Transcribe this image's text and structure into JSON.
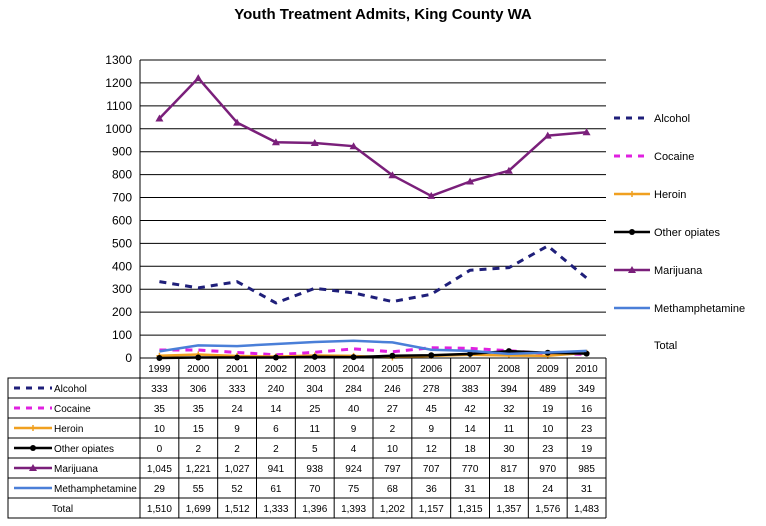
{
  "chart_data": {
    "type": "line",
    "title": "Youth Treatment Admits, King County WA",
    "categories": [
      "1999",
      "2000",
      "2001",
      "2002",
      "2003",
      "2004",
      "2005",
      "2006",
      "2007",
      "2008",
      "2009",
      "2010"
    ],
    "ylim": [
      0,
      1300
    ],
    "yticks": [
      0,
      100,
      200,
      300,
      400,
      500,
      600,
      700,
      800,
      900,
      1000,
      1100,
      1200,
      1300
    ],
    "grid": true,
    "legend_position": "right",
    "series": [
      {
        "name": "Alcohol",
        "color": "#1F1F7A",
        "style": "dashed",
        "marker": "none",
        "values": [
          333,
          306,
          333,
          240,
          304,
          284,
          246,
          278,
          383,
          394,
          489,
          349
        ],
        "labels": [
          "333",
          "306",
          "333",
          "240",
          "304",
          "284",
          "246",
          "278",
          "383",
          "394",
          "489",
          "349"
        ]
      },
      {
        "name": "Cocaine",
        "color": "#E020E0",
        "style": "dashed",
        "marker": "none",
        "values": [
          35,
          35,
          24,
          14,
          25,
          40,
          27,
          45,
          42,
          32,
          19,
          16
        ],
        "labels": [
          "35",
          "35",
          "24",
          "14",
          "25",
          "40",
          "27",
          "45",
          "42",
          "32",
          "19",
          "16"
        ]
      },
      {
        "name": "Heroin",
        "color": "#F0A020",
        "style": "solid",
        "marker": "plus",
        "values": [
          10,
          15,
          9,
          6,
          11,
          9,
          2,
          9,
          14,
          11,
          10,
          23
        ],
        "labels": [
          "10",
          "15",
          "9",
          "6",
          "11",
          "9",
          "2",
          "9",
          "14",
          "11",
          "10",
          "23"
        ]
      },
      {
        "name": "Other opiates",
        "color": "#000000",
        "style": "solid",
        "marker": "circle",
        "values": [
          0,
          2,
          2,
          2,
          5,
          4,
          10,
          12,
          18,
          30,
          23,
          19
        ],
        "labels": [
          "0",
          "2",
          "2",
          "2",
          "5",
          "4",
          "10",
          "12",
          "18",
          "30",
          "23",
          "19"
        ]
      },
      {
        "name": "Marijuana",
        "color": "#7A1F7A",
        "style": "solid",
        "marker": "triangle",
        "values": [
          1045,
          1221,
          1027,
          941,
          938,
          924,
          797,
          707,
          770,
          817,
          970,
          985
        ],
        "labels": [
          "1,045",
          "1,221",
          "1,027",
          "941",
          "938",
          "924",
          "797",
          "707",
          "770",
          "817",
          "970",
          "985"
        ]
      },
      {
        "name": "Methamphetamine",
        "color": "#4A7FD8",
        "style": "solid",
        "marker": "none",
        "values": [
          29,
          55,
          52,
          61,
          70,
          75,
          68,
          36,
          31,
          18,
          24,
          31
        ],
        "labels": [
          "29",
          "55",
          "52",
          "61",
          "70",
          "75",
          "68",
          "36",
          "31",
          "18",
          "24",
          "31"
        ]
      }
    ],
    "total": {
      "name": "Total",
      "values": [
        1510,
        1699,
        1512,
        1333,
        1396,
        1393,
        1202,
        1157,
        1315,
        1357,
        1576,
        1483
      ],
      "labels": [
        "1,510",
        "1,699",
        "1,512",
        "1,333",
        "1,396",
        "1,393",
        "1,202",
        "1,157",
        "1,315",
        "1,357",
        "1,576",
        "1,483"
      ]
    }
  }
}
